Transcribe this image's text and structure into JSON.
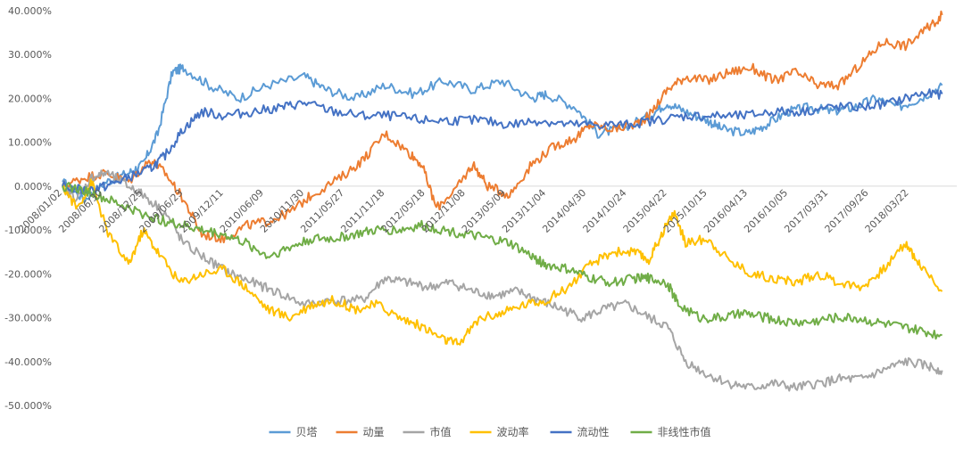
{
  "chart_data": {
    "type": "line",
    "title": "",
    "xlabel": "",
    "ylabel": "",
    "ylim": [
      -0.5,
      0.4
    ],
    "y_ticks": [
      0.4,
      0.3,
      0.2,
      0.1,
      0.0,
      -0.1,
      -0.2,
      -0.3,
      -0.4,
      -0.5
    ],
    "y_tick_labels": [
      "40.000%",
      "30.000%",
      "20.000%",
      "10.000%",
      "0.000%",
      "-10.000%",
      "-20.000%",
      "-30.000%",
      "-40.000%",
      "-50.000%"
    ],
    "x_tick_labels": [
      "2008/01/02",
      "2008/06/30",
      "2008/12/25",
      "2009/06/23",
      "2009/12/11",
      "2010/06/09",
      "2010/11/30",
      "2011/05/27",
      "2011/11/18",
      "2012/05/18",
      "2012/11/08",
      "2013/05/09",
      "2013/11/04",
      "2014/04/30",
      "2014/10/24",
      "2015/04/22",
      "2015/10/15",
      "2016/04/13",
      "2016/10/05",
      "2017/03/31",
      "2017/09/26",
      "2018/03/22"
    ],
    "x_tick_positions": [
      0,
      0.55,
      1.1,
      1.65,
      2.2,
      2.75,
      3.3,
      3.85,
      4.4,
      4.95,
      5.5,
      6.05,
      6.6,
      7.15,
      7.7,
      8.25,
      8.8,
      9.35,
      9.9,
      10.45,
      11.0,
      11.55
    ],
    "x_range": [
      0,
      12.2
    ],
    "grid": false,
    "legend_position": "bottom",
    "series": [
      {
        "name": "贝塔",
        "color": "#5b9bd5",
        "x": [
          0,
          0.3,
          0.6,
          0.9,
          1.1,
          1.3,
          1.5,
          1.65,
          2.0,
          2.4,
          2.8,
          3.3,
          3.6,
          4.0,
          4.4,
          4.8,
          5.2,
          5.6,
          6.0,
          6.4,
          6.6,
          7.0,
          7.3,
          7.6,
          8.0,
          8.25,
          8.5,
          8.8,
          9.0,
          9.35,
          9.6,
          9.9,
          10.2,
          10.5,
          10.8,
          11.1,
          11.4,
          11.7,
          12.0
        ],
        "values": [
          0.01,
          -0.03,
          0.01,
          0.03,
          0.05,
          0.12,
          0.26,
          0.27,
          0.23,
          0.2,
          0.23,
          0.25,
          0.22,
          0.2,
          0.23,
          0.21,
          0.24,
          0.22,
          0.24,
          0.2,
          0.21,
          0.18,
          0.12,
          0.13,
          0.16,
          0.19,
          0.17,
          0.15,
          0.13,
          0.12,
          0.14,
          0.17,
          0.18,
          0.17,
          0.18,
          0.2,
          0.18,
          0.2,
          0.23
        ]
      },
      {
        "name": "动量",
        "color": "#ed7d31",
        "x": [
          0,
          0.3,
          0.6,
          0.9,
          1.2,
          1.4,
          1.65,
          1.9,
          2.2,
          2.5,
          2.8,
          3.1,
          3.4,
          3.8,
          4.1,
          4.4,
          4.7,
          4.9,
          5.1,
          5.4,
          5.6,
          5.8,
          6.1,
          6.4,
          6.7,
          7.0,
          7.2,
          7.5,
          7.8,
          8.0,
          8.25,
          8.5,
          8.8,
          9.1,
          9.4,
          9.7,
          10.0,
          10.3,
          10.6,
          10.9,
          11.2,
          11.5,
          11.8,
          12.0
        ],
        "values": [
          0.0,
          0.02,
          0.03,
          0.01,
          0.06,
          0.03,
          -0.03,
          -0.11,
          -0.12,
          -0.09,
          -0.08,
          -0.06,
          -0.02,
          0.02,
          0.06,
          0.12,
          0.08,
          0.05,
          -0.05,
          0.0,
          0.05,
          0.0,
          -0.02,
          0.05,
          0.09,
          0.11,
          0.14,
          0.13,
          0.14,
          0.16,
          0.22,
          0.25,
          0.24,
          0.26,
          0.27,
          0.24,
          0.26,
          0.23,
          0.23,
          0.28,
          0.33,
          0.32,
          0.36,
          0.39
        ]
      },
      {
        "name": "市值",
        "color": "#a5a5a5",
        "x": [
          0,
          0.2,
          0.4,
          0.6,
          0.9,
          1.1,
          1.4,
          1.65,
          2.0,
          2.3,
          2.6,
          2.9,
          3.3,
          3.7,
          4.1,
          4.4,
          4.7,
          5.0,
          5.3,
          5.6,
          5.9,
          6.2,
          6.5,
          6.8,
          7.1,
          7.4,
          7.7,
          8.0,
          8.25,
          8.5,
          8.8,
          9.1,
          9.4,
          9.7,
          10.0,
          10.3,
          10.6,
          10.9,
          11.2,
          11.5,
          11.8,
          12.0
        ],
        "values": [
          0.0,
          -0.03,
          0.02,
          0.03,
          0.0,
          -0.02,
          -0.06,
          -0.13,
          -0.17,
          -0.2,
          -0.22,
          -0.24,
          -0.27,
          -0.26,
          -0.26,
          -0.21,
          -0.22,
          -0.23,
          -0.22,
          -0.24,
          -0.25,
          -0.24,
          -0.26,
          -0.28,
          -0.3,
          -0.28,
          -0.27,
          -0.3,
          -0.32,
          -0.4,
          -0.43,
          -0.45,
          -0.46,
          -0.45,
          -0.46,
          -0.45,
          -0.44,
          -0.44,
          -0.42,
          -0.4,
          -0.41,
          -0.42
        ]
      },
      {
        "name": "波动率",
        "color": "#ffc000",
        "x": [
          0,
          0.2,
          0.4,
          0.6,
          0.9,
          1.1,
          1.3,
          1.6,
          1.9,
          2.2,
          2.5,
          2.8,
          3.1,
          3.4,
          3.7,
          4.0,
          4.3,
          4.6,
          4.9,
          5.2,
          5.4,
          5.7,
          6.0,
          6.3,
          6.6,
          6.9,
          7.2,
          7.5,
          7.8,
          8.0,
          8.2,
          8.35,
          8.5,
          8.8,
          9.1,
          9.4,
          9.7,
          10.0,
          10.3,
          10.6,
          10.9,
          11.2,
          11.5,
          11.7,
          12.0
        ],
        "values": [
          0.0,
          -0.05,
          0.01,
          -0.1,
          -0.18,
          -0.1,
          -0.15,
          -0.22,
          -0.2,
          -0.19,
          -0.23,
          -0.28,
          -0.3,
          -0.27,
          -0.26,
          -0.28,
          -0.27,
          -0.3,
          -0.32,
          -0.35,
          -0.36,
          -0.3,
          -0.29,
          -0.27,
          -0.26,
          -0.23,
          -0.18,
          -0.15,
          -0.15,
          -0.17,
          -0.1,
          -0.06,
          -0.13,
          -0.12,
          -0.17,
          -0.2,
          -0.21,
          -0.22,
          -0.2,
          -0.22,
          -0.23,
          -0.19,
          -0.13,
          -0.18,
          -0.24
        ]
      },
      {
        "name": "流动性",
        "color": "#4472c4",
        "x": [
          0,
          0.3,
          0.6,
          0.9,
          1.2,
          1.4,
          1.65,
          1.9,
          2.2,
          2.6,
          3.0,
          3.3,
          3.7,
          4.1,
          4.5,
          4.9,
          5.3,
          5.7,
          6.1,
          6.5,
          6.9,
          7.3,
          7.7,
          8.1,
          8.5,
          8.9,
          9.3,
          9.7,
          10.1,
          10.5,
          10.9,
          11.3,
          11.7,
          12.0
        ],
        "values": [
          0.0,
          -0.01,
          0.0,
          0.02,
          0.04,
          0.07,
          0.13,
          0.17,
          0.16,
          0.17,
          0.18,
          0.19,
          0.17,
          0.16,
          0.16,
          0.15,
          0.15,
          0.15,
          0.14,
          0.15,
          0.14,
          0.14,
          0.14,
          0.15,
          0.16,
          0.16,
          0.16,
          0.17,
          0.17,
          0.18,
          0.18,
          0.19,
          0.21,
          0.21
        ]
      },
      {
        "name": "非线性市值",
        "color": "#70ad47",
        "x": [
          0,
          0.3,
          0.6,
          0.9,
          1.2,
          1.4,
          1.65,
          1.9,
          2.2,
          2.5,
          2.8,
          3.1,
          3.4,
          3.7,
          4.0,
          4.3,
          4.6,
          4.9,
          5.2,
          5.5,
          5.8,
          6.1,
          6.4,
          6.6,
          6.9,
          7.2,
          7.5,
          7.8,
          8.0,
          8.25,
          8.4,
          8.7,
          9.0,
          9.3,
          9.6,
          9.9,
          10.2,
          10.5,
          10.8,
          11.1,
          11.4,
          11.7,
          12.0
        ],
        "values": [
          0.0,
          -0.01,
          -0.03,
          -0.05,
          -0.07,
          -0.08,
          -0.09,
          -0.1,
          -0.11,
          -0.13,
          -0.16,
          -0.14,
          -0.12,
          -0.12,
          -0.11,
          -0.1,
          -0.1,
          -0.09,
          -0.1,
          -0.11,
          -0.12,
          -0.13,
          -0.16,
          -0.18,
          -0.19,
          -0.21,
          -0.22,
          -0.21,
          -0.21,
          -0.22,
          -0.27,
          -0.3,
          -0.3,
          -0.29,
          -0.3,
          -0.31,
          -0.31,
          -0.3,
          -0.3,
          -0.31,
          -0.32,
          -0.33,
          -0.34
        ]
      }
    ]
  }
}
